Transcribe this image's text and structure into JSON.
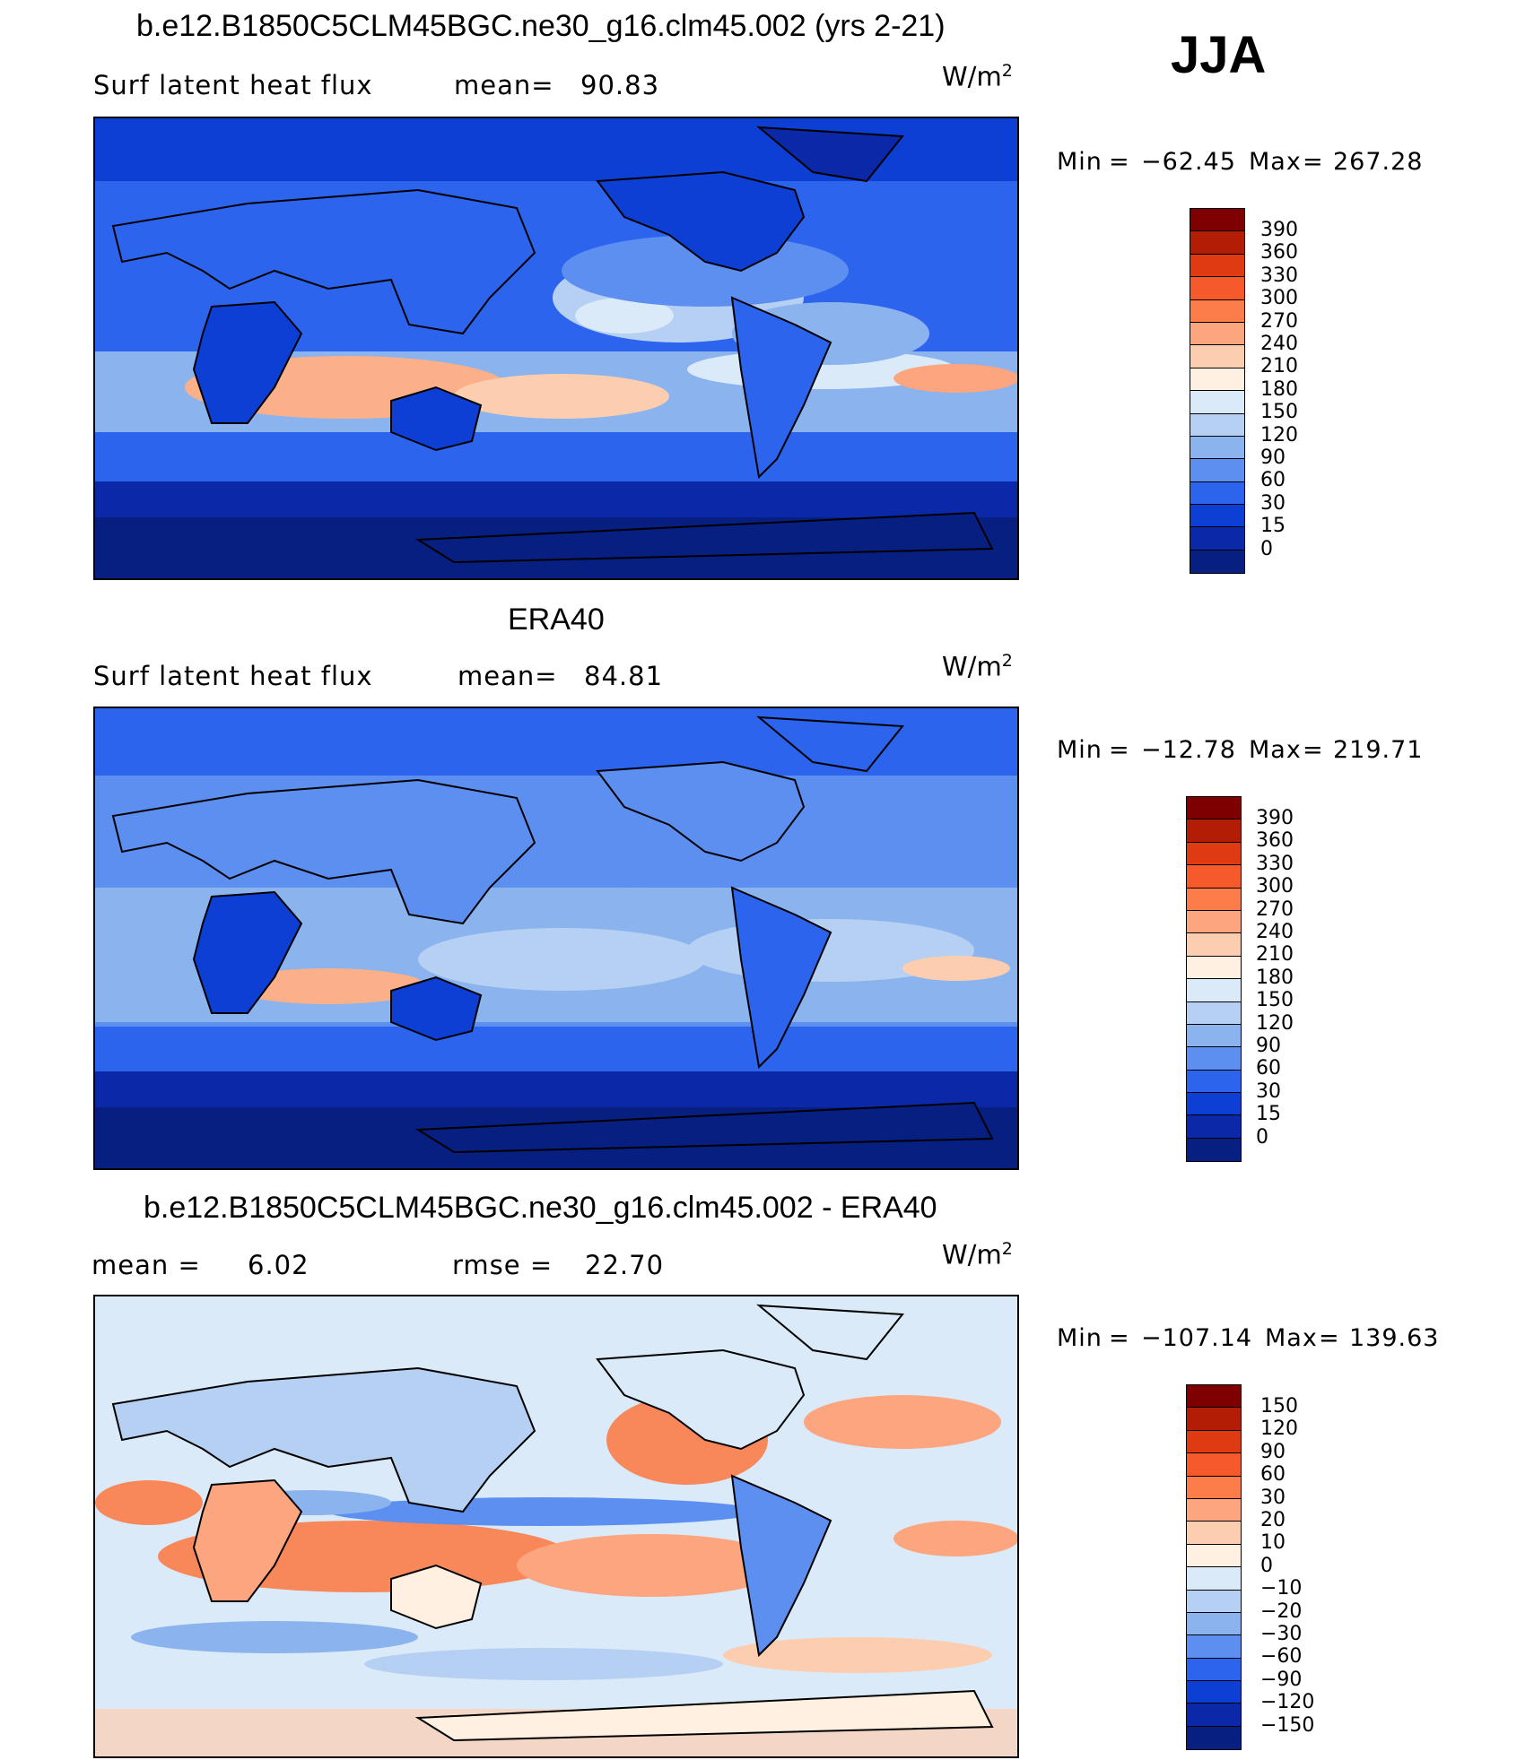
{
  "season": "JJA",
  "panels": [
    {
      "id": "model",
      "title": "b.e12.B1850C5CLM45BGC.ne30_g16.clm45.002 (yrs 2-21)",
      "left_label": "Surf  latent  heat  flux",
      "stat_label": "mean=",
      "stat_value": "90.83",
      "units": "W/m",
      "units_sup": "2",
      "min_label": "Min",
      "min_value": "-62.45",
      "max_label": "Max",
      "max_value": "267.28",
      "colorbar_labels": [
        "390",
        "360",
        "330",
        "300",
        "270",
        "240",
        "210",
        "180",
        "150",
        "120",
        "90",
        "60",
        "30",
        "15",
        "0"
      ]
    },
    {
      "id": "obs",
      "title": "ERA40",
      "left_label": "Surf  latent  heat  flux",
      "stat_label": "mean=",
      "stat_value": "84.81",
      "units": "W/m",
      "units_sup": "2",
      "min_label": "Min",
      "min_value": "-12.78",
      "max_label": "Max",
      "max_value": "219.71",
      "colorbar_labels": [
        "390",
        "360",
        "330",
        "300",
        "270",
        "240",
        "210",
        "180",
        "150",
        "120",
        "90",
        "60",
        "30",
        "15",
        "0"
      ]
    },
    {
      "id": "diff",
      "title": "b.e12.B1850C5CLM45BGC.ne30_g16.clm45.002 - ERA40",
      "left_label": "mean =",
      "left_value": "6.02",
      "stat_label": "rmse =",
      "stat_value": "22.70",
      "units": "W/m",
      "units_sup": "2",
      "min_label": "Min",
      "min_value": "-107.14",
      "max_label": "Max",
      "max_value": "139.63",
      "colorbar_labels": [
        "150",
        "120",
        "90",
        "60",
        "30",
        "20",
        "10",
        "0",
        "-10",
        "-20",
        "-30",
        "-60",
        "-90",
        "-120",
        "-150"
      ]
    }
  ],
  "colors": {
    "flux_scale": [
      "#7f0000",
      "#b31d05",
      "#de3b13",
      "#f65a2a",
      "#fc7d4a",
      "#fca57e",
      "#fdcdb0",
      "#fff0e1",
      "#dbeaf8",
      "#b5d0f2",
      "#8bb3ee",
      "#5c8ff0",
      "#2c64ee",
      "#0d3fd4",
      "#0a28a8",
      "#061f80"
    ],
    "diff_scale": [
      "#7f0000",
      "#b31d05",
      "#de3b13",
      "#f65a2a",
      "#fc7d4a",
      "#fca57e",
      "#fdcdb0",
      "#fff0e1",
      "#dbeaf8",
      "#b5d0f2",
      "#8bb3ee",
      "#5c8ff0",
      "#2c64ee",
      "#0d3fd4",
      "#0a28a8",
      "#061f80"
    ]
  }
}
